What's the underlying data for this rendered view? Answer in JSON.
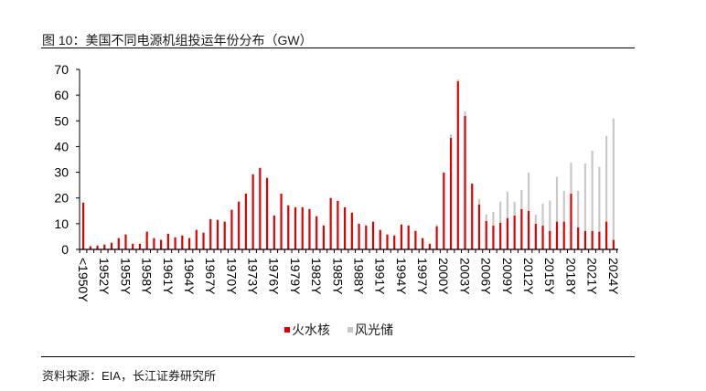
{
  "title": "图  10：美国不同电源机组投运年份分布（GW）",
  "source": "资料来源：EIA，长江证券研究所",
  "chart_data": {
    "type": "bar",
    "stacked": true,
    "title": "图  10：美国不同电源机组投运年份分布（GW）",
    "xlabel": "",
    "ylabel": "",
    "ylim": [
      0,
      70
    ],
    "yticks": [
      0,
      10,
      20,
      30,
      40,
      50,
      60,
      70
    ],
    "grid": false,
    "legend_position": "bottom",
    "categories": [
      "<1950Y",
      "1950Y",
      "1951Y",
      "1952Y",
      "1953Y",
      "1954Y",
      "1955Y",
      "1956Y",
      "1957Y",
      "1958Y",
      "1959Y",
      "1960Y",
      "1961Y",
      "1962Y",
      "1963Y",
      "1964Y",
      "1965Y",
      "1966Y",
      "1967Y",
      "1968Y",
      "1969Y",
      "1970Y",
      "1971Y",
      "1972Y",
      "1973Y",
      "1974Y",
      "1975Y",
      "1976Y",
      "1977Y",
      "1978Y",
      "1979Y",
      "1980Y",
      "1981Y",
      "1982Y",
      "1983Y",
      "1984Y",
      "1985Y",
      "1986Y",
      "1987Y",
      "1988Y",
      "1989Y",
      "1990Y",
      "1991Y",
      "1992Y",
      "1993Y",
      "1994Y",
      "1995Y",
      "1996Y",
      "1997Y",
      "1998Y",
      "1999Y",
      "2000Y",
      "2001Y",
      "2002Y",
      "2003Y",
      "2004Y",
      "2005Y",
      "2006Y",
      "2007Y",
      "2008Y",
      "2009Y",
      "2010Y",
      "2011Y",
      "2012Y",
      "2013Y",
      "2014Y",
      "2015Y",
      "2016Y",
      "2017Y",
      "2018Y",
      "2019Y",
      "2020Y",
      "2021Y",
      "2022Y",
      "2023Y",
      "2024Y"
    ],
    "label_every": 3,
    "series": [
      {
        "name": "火水核",
        "color": "#e00000",
        "values": [
          18.2,
          1.2,
          1.5,
          1.9,
          2.6,
          4.4,
          5.8,
          2.2,
          2.2,
          6.9,
          4.4,
          3.7,
          6.1,
          4.7,
          5.4,
          4.4,
          7.6,
          6.5,
          11.8,
          11.5,
          10.8,
          15.4,
          18.6,
          21.7,
          29.2,
          31.7,
          27.8,
          13.2,
          21.7,
          17.1,
          16.4,
          16.4,
          15.7,
          12.9,
          9.3,
          20.0,
          18.9,
          16.4,
          14.3,
          10.0,
          9.3,
          10.8,
          7.6,
          5.8,
          5.4,
          9.7,
          9.3,
          7.2,
          4.4,
          2.2,
          9.0,
          29.9,
          43.4,
          65.4,
          51.9,
          25.6,
          17.5,
          11.1,
          9.3,
          10.4,
          12.2,
          13.2,
          15.7,
          15.0,
          10.0,
          9.3,
          7.2,
          10.8,
          10.8,
          21.7,
          8.6,
          7.2,
          7.2,
          6.9,
          10.8,
          3.7
        ]
      },
      {
        "name": "风光储",
        "color": "#c8c8c8",
        "values": [
          0,
          0,
          0,
          0,
          0,
          0,
          0,
          0,
          0,
          0,
          0,
          0,
          0,
          0,
          0,
          0,
          0,
          0,
          0,
          0,
          0,
          0,
          0,
          0,
          0,
          0,
          0,
          0,
          0,
          0,
          0,
          0,
          0,
          0,
          0,
          0,
          0,
          0,
          0,
          0,
          0,
          0,
          0,
          0,
          0,
          0,
          0,
          0,
          0,
          0,
          0.7,
          0,
          1.4,
          0.7,
          1.8,
          0,
          2.1,
          2.5,
          5.3,
          8.2,
          10.3,
          5.3,
          7.4,
          14.9,
          3.5,
          8.5,
          11.8,
          17.4,
          12.0,
          12.1,
          14.2,
          26.2,
          31.2,
          25.2,
          33.3,
          47.2
        ]
      }
    ]
  }
}
